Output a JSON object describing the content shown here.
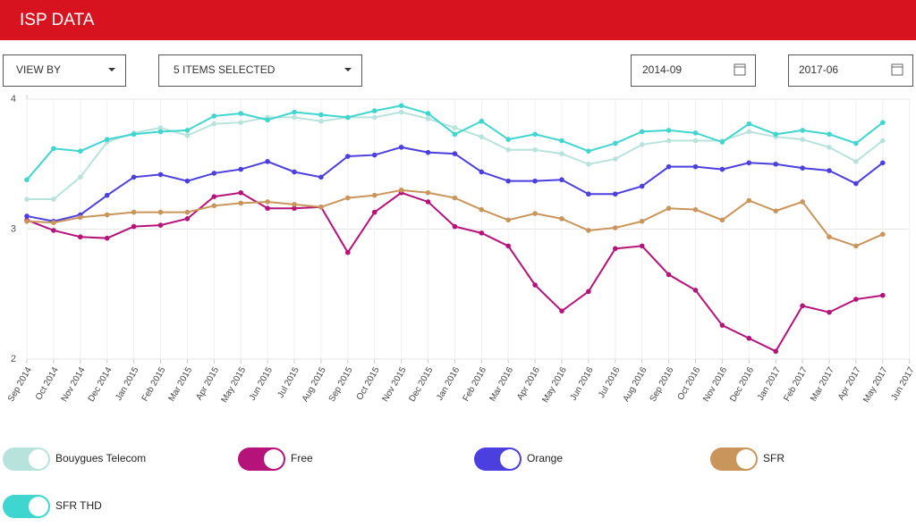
{
  "header": {
    "title": "ISP DATA"
  },
  "controls": {
    "view_by": "VIEW BY",
    "items": "5 ITEMS SELECTED",
    "start": "2014-09",
    "end": "2017-06"
  },
  "chart_data": {
    "type": "line",
    "categories": [
      "Sep 2014",
      "Oct 2014",
      "Nov 2014",
      "Dec 2014",
      "Jan 2015",
      "Feb 2015",
      "Mar 2015",
      "Apr 2015",
      "May 2015",
      "Jun 2015",
      "Jul 2015",
      "Aug 2015",
      "Sep 2015",
      "Oct 2015",
      "Nov 2015",
      "Dec 2015",
      "Jan 2016",
      "Feb 2016",
      "Mar 2016",
      "Apr 2016",
      "May 2016",
      "Jun 2016",
      "Jul 2016",
      "Aug 2016",
      "Sep 2016",
      "Oct 2016",
      "Nov 2016",
      "Dec 2016",
      "Jan 2017",
      "Feb 2017",
      "Mar 2017",
      "Apr 2017",
      "May 2017",
      "Jun 2017"
    ],
    "ylim": [
      2,
      4
    ],
    "yticks": [
      2,
      3,
      4
    ],
    "grid": true,
    "series": [
      {
        "name": "Bouygues Telecom",
        "color": "#b8e3dc",
        "values": [
          3.23,
          3.23,
          3.4,
          3.67,
          3.74,
          3.78,
          3.72,
          3.81,
          3.82,
          3.86,
          3.86,
          3.83,
          3.86,
          3.86,
          3.9,
          3.85,
          3.78,
          3.71,
          3.61,
          3.61,
          3.58,
          3.5,
          3.54,
          3.65,
          3.68,
          3.68,
          3.68,
          3.75,
          3.71,
          3.69,
          3.63,
          3.52,
          3.68,
          null
        ]
      },
      {
        "name": "Free",
        "color": "#b5137a",
        "values": [
          3.07,
          2.99,
          2.94,
          2.93,
          3.02,
          3.03,
          3.08,
          3.25,
          3.28,
          3.16,
          3.16,
          3.17,
          2.82,
          3.13,
          3.28,
          3.21,
          3.02,
          2.97,
          2.87,
          2.57,
          2.37,
          2.52,
          2.85,
          2.87,
          2.65,
          2.53,
          2.26,
          2.16,
          2.06,
          2.41,
          2.36,
          2.46,
          2.49,
          null
        ]
      },
      {
        "name": "Orange",
        "color": "#4b3fe0",
        "values": [
          3.1,
          3.06,
          3.11,
          3.26,
          3.4,
          3.42,
          3.37,
          3.43,
          3.46,
          3.52,
          3.44,
          3.4,
          3.56,
          3.57,
          3.63,
          3.59,
          3.58,
          3.44,
          3.37,
          3.37,
          3.38,
          3.27,
          3.27,
          3.33,
          3.48,
          3.48,
          3.46,
          3.51,
          3.5,
          3.47,
          3.45,
          3.35,
          3.51,
          null
        ]
      },
      {
        "name": "SFR",
        "color": "#c9955a",
        "values": [
          3.06,
          3.05,
          3.09,
          3.11,
          3.13,
          3.13,
          3.13,
          3.18,
          3.2,
          3.21,
          3.19,
          3.17,
          3.24,
          3.26,
          3.3,
          3.28,
          3.24,
          3.15,
          3.07,
          3.12,
          3.08,
          2.99,
          3.01,
          3.06,
          3.16,
          3.15,
          3.07,
          3.22,
          3.14,
          3.21,
          2.94,
          2.87,
          2.96,
          null
        ]
      },
      {
        "name": "SFR THD",
        "color": "#3fd6d0",
        "values": [
          3.38,
          3.62,
          3.6,
          3.69,
          3.73,
          3.75,
          3.76,
          3.87,
          3.89,
          3.84,
          3.9,
          3.88,
          3.86,
          3.91,
          3.95,
          3.89,
          3.73,
          3.83,
          3.69,
          3.73,
          3.68,
          3.6,
          3.66,
          3.75,
          3.76,
          3.74,
          3.67,
          3.81,
          3.73,
          3.76,
          3.73,
          3.66,
          3.82,
          null
        ]
      }
    ]
  }
}
